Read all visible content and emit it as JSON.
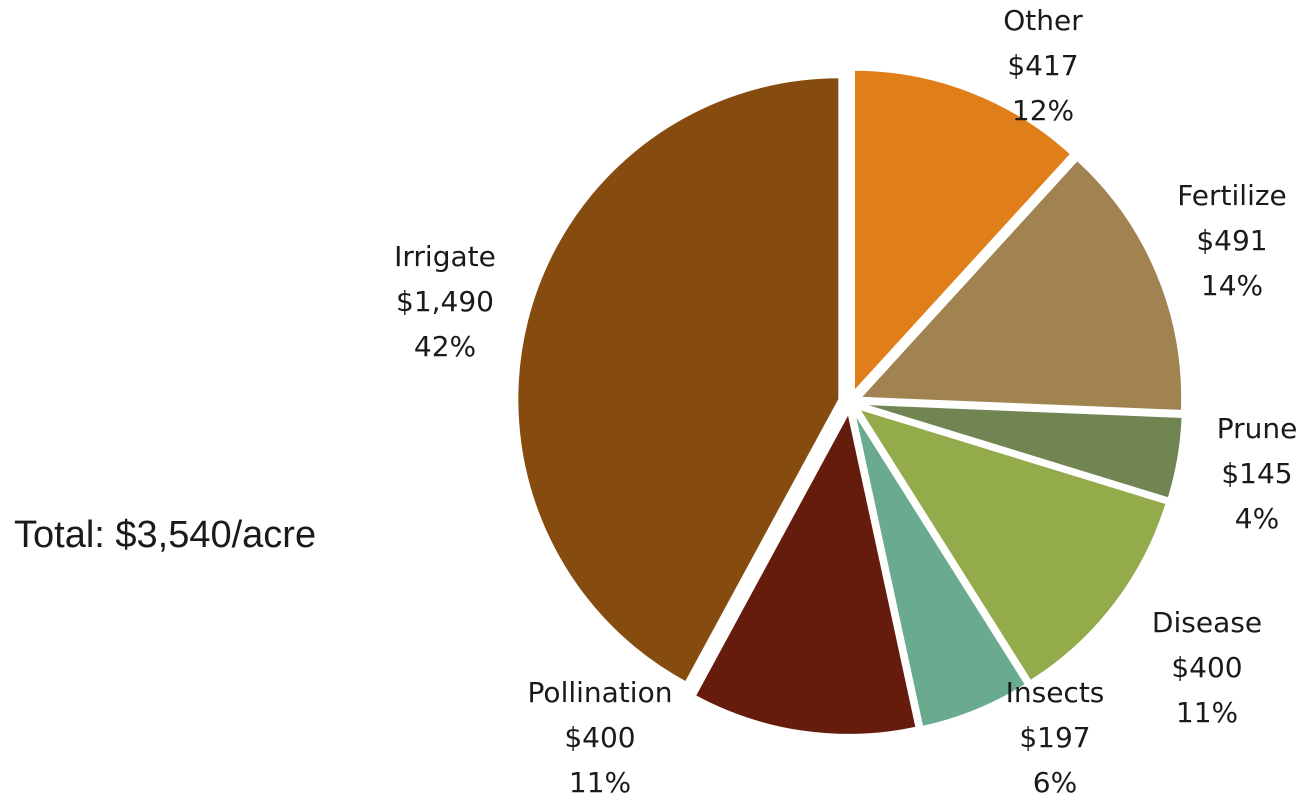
{
  "chart_data": {
    "type": "pie",
    "total_label": "Total: $3,540/acre",
    "categories": [
      "Other",
      "Fertilize",
      "Prune",
      "Disease",
      "Insects",
      "Pollination",
      "Irrigate"
    ],
    "values": [
      417,
      491,
      145,
      400,
      197,
      400,
      1490
    ],
    "value_labels": [
      "$417",
      "$491",
      "$145",
      "$400",
      "$197",
      "$400",
      "$1,490"
    ],
    "percent_labels": [
      "12%",
      "14%",
      "4%",
      "11%",
      "6%",
      "11%",
      "42%"
    ],
    "colors": [
      "#e07f1a",
      "#a08350",
      "#718552",
      "#94ab4c",
      "#6aab90",
      "#661c0c",
      "#864b0f"
    ]
  }
}
